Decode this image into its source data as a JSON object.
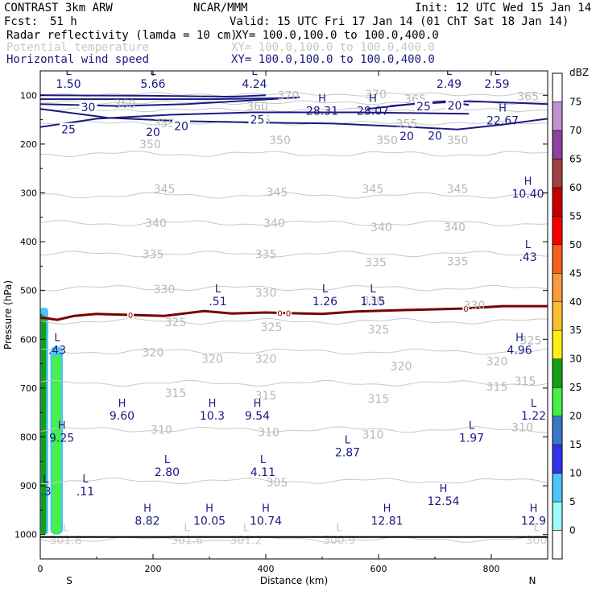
{
  "header": {
    "model": "CONTRAST  3km ARW",
    "org": "NCAR/MMM",
    "init": "Init: 12 UTC Wed 15 Jan 14",
    "fcst_label": "Fcst:",
    "fcst_value": "51 h",
    "valid": "Valid: 15 UTC Fri 17 Jan 14 (01 ChT Sat 18 Jan 14)",
    "fields": [
      {
        "name": "Radar reflectivity (lamda = 10 cm)",
        "xy": "XY= 100.0,100.0 to 100.0,400.0"
      },
      {
        "name": "Potential temperature",
        "xy": "XY= 100.0,100.0 to 100.0,400.0"
      },
      {
        "name": "Horizontal wind speed",
        "xy": "XY= 100.0,100.0 to 100.0,400.0"
      }
    ],
    "colors": {
      "text": "#000000",
      "wind": "#1a1a80",
      "theta": "#c8c8c8",
      "freezing": "#7a0000"
    }
  },
  "chart_data": {
    "type": "cross-section",
    "title": "CONTRAST 3km ARW vertical cross section",
    "xlabel": "Distance (km)",
    "ylabel": "Pressure (hPa)",
    "xlim": [
      0,
      900
    ],
    "ylim": [
      1050,
      50
    ],
    "x_ticks": [
      0,
      200,
      400,
      600,
      800
    ],
    "y_ticks": [
      100,
      200,
      300,
      400,
      500,
      600,
      700,
      800,
      900,
      1000
    ],
    "end_labels": {
      "left": "S",
      "right": "N"
    },
    "colorbar": {
      "unit": "dBZ",
      "levels": [
        0,
        5,
        10,
        15,
        20,
        25,
        30,
        35,
        40,
        45,
        50,
        55,
        60,
        65,
        70,
        75
      ],
      "colors": [
        "#ffffff",
        "#9ffcfc",
        "#4cc4f8",
        "#3232f0",
        "#3a78c8",
        "#46f046",
        "#14a014",
        "#faf014",
        "#f8c030",
        "#f89c3c",
        "#f86018",
        "#f80000",
        "#c40000",
        "#a04040",
        "#9040a0",
        "#c090d0",
        "#ffffff"
      ]
    },
    "theta_contours": [
      {
        "value": 300,
        "p": 1010
      },
      {
        "value": 305,
        "p": 890
      },
      {
        "value": 310,
        "p": 785
      },
      {
        "value": 315,
        "p": 690
      },
      {
        "value": 320,
        "p": 625
      },
      {
        "value": 325,
        "p": 563
      },
      {
        "value": 330,
        "p": 495
      },
      {
        "value": 335,
        "p": 425
      },
      {
        "value": 340,
        "p": 362
      },
      {
        "value": 345,
        "p": 305
      },
      {
        "value": 350,
        "p": 220
      },
      {
        "value": 355,
        "p": 157
      },
      {
        "value": 360,
        "p": 130
      },
      {
        "value": 365,
        "p": 115
      },
      {
        "value": 370,
        "p": 98
      }
    ],
    "theta_labels": [
      {
        "text": "350",
        "x": 195,
        "p": 200
      },
      {
        "text": "350",
        "x": 425,
        "p": 192
      },
      {
        "text": "350",
        "x": 615,
        "p": 192
      },
      {
        "text": "350",
        "x": 740,
        "p": 192
      },
      {
        "text": "345",
        "x": 220,
        "p": 292
      },
      {
        "text": "345",
        "x": 420,
        "p": 298
      },
      {
        "text": "345",
        "x": 590,
        "p": 292
      },
      {
        "text": "345",
        "x": 740,
        "p": 292
      },
      {
        "text": "340",
        "x": 205,
        "p": 362
      },
      {
        "text": "340",
        "x": 415,
        "p": 362
      },
      {
        "text": "340",
        "x": 605,
        "p": 370
      },
      {
        "text": "340",
        "x": 735,
        "p": 370
      },
      {
        "text": "335",
        "x": 200,
        "p": 425
      },
      {
        "text": "335",
        "x": 400,
        "p": 425
      },
      {
        "text": "335",
        "x": 595,
        "p": 442
      },
      {
        "text": "335",
        "x": 740,
        "p": 440
      },
      {
        "text": "330",
        "x": 220,
        "p": 497
      },
      {
        "text": "330",
        "x": 400,
        "p": 505
      },
      {
        "text": "330",
        "x": 590,
        "p": 520
      },
      {
        "text": "330",
        "x": 770,
        "p": 530
      },
      {
        "text": "325",
        "x": 240,
        "p": 565
      },
      {
        "text": "325",
        "x": 410,
        "p": 575
      },
      {
        "text": "325",
        "x": 600,
        "p": 580
      },
      {
        "text": "325",
        "x": 870,
        "p": 602
      },
      {
        "text": "320",
        "x": 200,
        "p": 627
      },
      {
        "text": "320",
        "x": 305,
        "p": 640
      },
      {
        "text": "320",
        "x": 400,
        "p": 640
      },
      {
        "text": "320",
        "x": 640,
        "p": 655
      },
      {
        "text": "320",
        "x": 810,
        "p": 645
      },
      {
        "text": "315",
        "x": 240,
        "p": 710
      },
      {
        "text": "315",
        "x": 400,
        "p": 715
      },
      {
        "text": "315",
        "x": 600,
        "p": 722
      },
      {
        "text": "315",
        "x": 810,
        "p": 697
      },
      {
        "text": "315",
        "x": 860,
        "p": 685
      },
      {
        "text": "310",
        "x": 215,
        "p": 785
      },
      {
        "text": "310",
        "x": 405,
        "p": 790
      },
      {
        "text": "310",
        "x": 590,
        "p": 795
      },
      {
        "text": "310",
        "x": 855,
        "p": 780
      },
      {
        "text": "305",
        "x": 420,
        "p": 893
      },
      {
        "text": "360",
        "x": 150,
        "p": 118
      },
      {
        "text": "360",
        "x": 385,
        "p": 123
      },
      {
        "text": "355",
        "x": 220,
        "p": 157
      },
      {
        "text": "355",
        "x": 390,
        "p": 151
      },
      {
        "text": "355",
        "x": 650,
        "p": 158
      },
      {
        "text": "370",
        "x": 595,
        "p": 98
      },
      {
        "text": "370",
        "x": 440,
        "p": 100
      },
      {
        "text": "365",
        "x": 665,
        "p": 108
      },
      {
        "text": "365",
        "x": 865,
        "p": 102
      }
    ],
    "wind_contours": [
      {
        "value": 20,
        "points": [
          [
            0,
            128
          ],
          [
            120,
            146
          ],
          [
            250,
            153
          ],
          [
            400,
            156
          ],
          [
            520,
            158
          ],
          [
            640,
            164
          ],
          [
            740,
            170
          ],
          [
            820,
            160
          ],
          [
            900,
            148
          ]
        ]
      },
      {
        "value": 25,
        "points": [
          [
            0,
            165
          ],
          [
            100,
            148
          ],
          [
            230,
            140
          ],
          [
            380,
            135
          ],
          [
            560,
            135
          ],
          [
            700,
            137
          ],
          [
            760,
            138
          ]
        ]
      },
      {
        "value": 30,
        "points": [
          [
            0,
            118
          ],
          [
            140,
            122
          ],
          [
            260,
            118
          ],
          [
            380,
            110
          ],
          [
            460,
            104
          ]
        ]
      },
      {
        "value": 35,
        "points": [
          [
            0,
            108
          ],
          [
            160,
            108
          ],
          [
            300,
            108
          ],
          [
            430,
            106
          ]
        ]
      },
      {
        "value": 40,
        "points": [
          [
            0,
            100
          ],
          [
            200,
            101
          ],
          [
            340,
            103
          ],
          [
            400,
            100
          ]
        ]
      },
      {
        "value": 25,
        "points": [
          [
            620,
            122
          ],
          [
            680,
            116
          ],
          [
            720,
            112
          ],
          [
            760,
            120
          ]
        ]
      },
      {
        "value": 20,
        "points": [
          [
            580,
            128
          ],
          [
            660,
            118
          ],
          [
            760,
            112
          ],
          [
            900,
            118
          ]
        ]
      }
    ],
    "wind_labels": [
      {
        "text": "30",
        "x": 85,
        "p": 124
      },
      {
        "text": "25",
        "x": 50,
        "p": 170
      },
      {
        "text": "20",
        "x": 200,
        "p": 175
      },
      {
        "text": "20",
        "x": 250,
        "p": 163
      },
      {
        "text": "25",
        "x": 385,
        "p": 150
      },
      {
        "text": "20",
        "x": 650,
        "p": 184
      },
      {
        "text": "20",
        "x": 700,
        "p": 183
      },
      {
        "text": "25",
        "x": 680,
        "p": 123
      },
      {
        "text": "20",
        "x": 735,
        "p": 121
      }
    ],
    "freezing_level": {
      "label": "0",
      "points": [
        [
          0,
          555
        ],
        [
          30,
          560
        ],
        [
          60,
          552
        ],
        [
          100,
          548
        ],
        [
          160,
          550
        ],
        [
          220,
          552
        ],
        [
          290,
          542
        ],
        [
          340,
          547
        ],
        [
          400,
          545
        ],
        [
          500,
          548
        ],
        [
          560,
          543
        ],
        [
          650,
          540
        ],
        [
          750,
          537
        ],
        [
          820,
          532
        ],
        [
          900,
          532
        ]
      ],
      "labels_at_x": [
        160,
        425,
        440,
        755
      ]
    },
    "extrema": [
      {
        "type": "L",
        "value": "1.50",
        "x": 50,
        "p": 65
      },
      {
        "type": "L",
        "value": "5.66",
        "x": 200,
        "p": 65
      },
      {
        "type": "L",
        "value": "4.24",
        "x": 380,
        "p": 65
      },
      {
        "type": "L",
        "value": "2.49",
        "x": 725,
        "p": 65
      },
      {
        "type": "L",
        "value": "2.59",
        "x": 810,
        "p": 65
      },
      {
        "type": "H",
        "value": "28.31",
        "x": 500,
        "p": 120
      },
      {
        "type": "H",
        "value": "28.07",
        "x": 590,
        "p": 120
      },
      {
        "type": "H",
        "value": "22.67",
        "x": 820,
        "p": 140
      },
      {
        "type": "H",
        "value": "10.40",
        "x": 865,
        "p": 290
      },
      {
        "type": "L",
        "value": ".43",
        "x": 865,
        "p": 420
      },
      {
        "type": "L",
        "value": ".51",
        "x": 315,
        "p": 510
      },
      {
        "type": "L",
        "value": "1.26",
        "x": 505,
        "p": 510
      },
      {
        "type": "L",
        "value": "1.15",
        "x": 590,
        "p": 510
      },
      {
        "type": "L",
        "value": ".43",
        "x": 30,
        "p": 610
      },
      {
        "type": "H",
        "value": "4.96",
        "x": 850,
        "p": 610
      },
      {
        "type": "H",
        "value": "9.60",
        "x": 145,
        "p": 745
      },
      {
        "type": "H",
        "value": "10.3",
        "x": 305,
        "p": 745
      },
      {
        "type": "H",
        "value": "9.54",
        "x": 385,
        "p": 745
      },
      {
        "type": "H",
        "value": "9.25",
        "x": 38,
        "p": 790
      },
      {
        "type": "L",
        "value": "1.22",
        "x": 875,
        "p": 745
      },
      {
        "type": "L",
        "value": "1.97",
        "x": 765,
        "p": 790
      },
      {
        "type": "L",
        "value": "2.87",
        "x": 545,
        "p": 820
      },
      {
        "type": "L",
        "value": "2.80",
        "x": 225,
        "p": 860
      },
      {
        "type": "L",
        "value": "4.11",
        "x": 395,
        "p": 860
      },
      {
        "type": "L",
        "value": ".11",
        "x": 80,
        "p": 900
      },
      {
        "type": "L",
        "value": ".3",
        "x": 10,
        "p": 900
      },
      {
        "type": "H",
        "value": "12.54",
        "x": 715,
        "p": 920
      },
      {
        "type": "H",
        "value": "8.82",
        "x": 190,
        "p": 960
      },
      {
        "type": "H",
        "value": "10.05",
        "x": 300,
        "p": 960
      },
      {
        "type": "H",
        "value": "10.74",
        "x": 400,
        "p": 960
      },
      {
        "type": "H",
        "value": "12.81",
        "x": 615,
        "p": 960
      },
      {
        "type": "H",
        "value": "12.9",
        "x": 875,
        "p": 960
      },
      {
        "type": "L",
        "value": "301.8",
        "x": 45,
        "p": 1000
      },
      {
        "type": "L",
        "value": "301.6",
        "x": 260,
        "p": 1000
      },
      {
        "type": "L",
        "value": "301.2",
        "x": 365,
        "p": 1000
      },
      {
        "type": "L",
        "value": "300.9",
        "x": 530,
        "p": 1000
      },
      {
        "type": "L",
        "value": "300",
        "x": 880,
        "p": 1000
      }
    ],
    "extrema_colors": {
      "wind": "#1a1a80",
      "theta": "#c8c8c8"
    },
    "theta_extrema_values": [
      "301.8",
      "301.6",
      "301.2",
      "300.9",
      "300"
    ],
    "reflectivity_cells": [
      {
        "x0": 0,
        "x1": 12,
        "p_top": 545,
        "p_bot": 1000,
        "dbz": 30
      },
      {
        "x0": 20,
        "x1": 38,
        "p_top": 625,
        "p_bot": 1000,
        "dbz": 25
      }
    ],
    "ground_p": 1005
  }
}
